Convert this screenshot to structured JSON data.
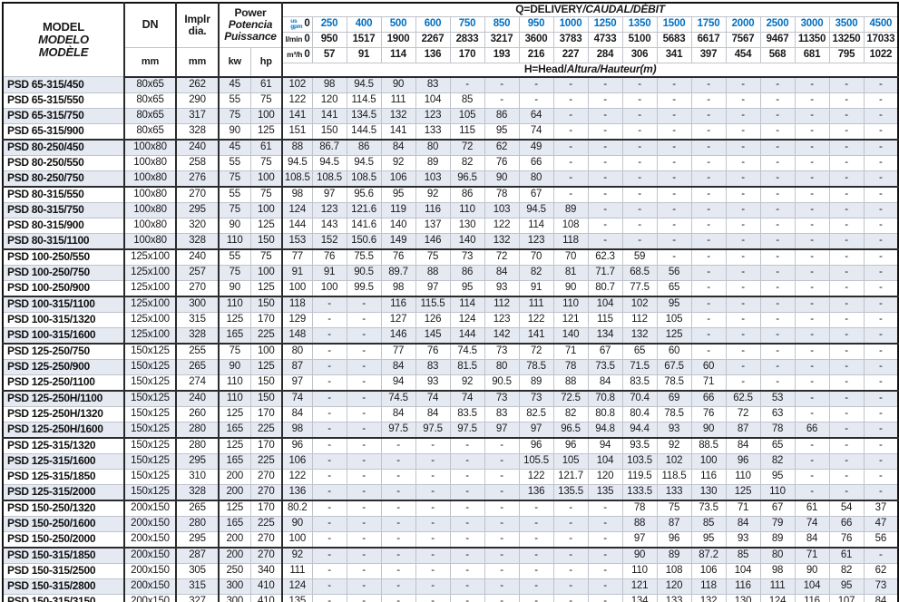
{
  "colors": {
    "accent_blue": "#0070c0",
    "row_shade": "#e4e9f2",
    "grid_line": "#bfc4cb",
    "heavy_line": "#2b2b2b"
  },
  "table": {
    "header": {
      "model_lines": [
        "MODEL",
        "MODELO",
        "MODÈLE"
      ],
      "dn_label": "DN",
      "implr_lines": [
        "Implr",
        "dia."
      ],
      "power_lines": [
        "Power",
        "Potencia",
        "Puissance"
      ],
      "mm_label": "mm",
      "kw_label": "kw",
      "hp_label": "hp",
      "q_title_main": "Q=DELIVERY",
      "q_title_italic": "/CAUDAL/DÉBIT",
      "h_title_main": "H=Head/",
      "h_title_italic": "Altura/Hauteur",
      "h_title_suffix": "(m)",
      "flow_rows": [
        {
          "name": "us-gpm",
          "unit_lines": [
            "us",
            "gpm"
          ],
          "zero": "0",
          "blue": true,
          "values": [
            "250",
            "400",
            "500",
            "600",
            "750",
            "850",
            "950",
            "1000",
            "1250",
            "1350",
            "1500",
            "1750",
            "2000",
            "2500",
            "3000",
            "3500",
            "4500"
          ]
        },
        {
          "name": "l-min",
          "unit_lines": [
            "l/min"
          ],
          "zero": "0",
          "blue": false,
          "values": [
            "950",
            "1517",
            "1900",
            "2267",
            "2833",
            "3217",
            "3600",
            "3783",
            "4733",
            "5100",
            "5683",
            "6617",
            "7567",
            "9467",
            "11350",
            "13250",
            "17033"
          ]
        },
        {
          "name": "m3-h",
          "unit_lines": [
            "m³/h"
          ],
          "zero": "0",
          "blue": false,
          "values": [
            "57",
            "91",
            "114",
            "136",
            "170",
            "193",
            "216",
            "227",
            "284",
            "306",
            "341",
            "397",
            "454",
            "568",
            "681",
            "795",
            "1022"
          ]
        }
      ]
    },
    "rows": [
      {
        "model": "PSD 65-315/450",
        "dn": "80x65",
        "dia": "262",
        "kw": "45",
        "hp": "61",
        "h": [
          "102",
          "98",
          "94.5",
          "90",
          "83",
          "-",
          "-",
          "-",
          "-",
          "-",
          "-",
          "-",
          "-",
          "-",
          "-",
          "-",
          "-",
          "-"
        ]
      },
      {
        "model": "PSD 65-315/550",
        "dn": "80x65",
        "dia": "290",
        "kw": "55",
        "hp": "75",
        "h": [
          "122",
          "120",
          "114.5",
          "111",
          "104",
          "85",
          "-",
          "-",
          "-",
          "-",
          "-",
          "-",
          "-",
          "-",
          "-",
          "-",
          "-",
          "-"
        ]
      },
      {
        "model": "PSD 65-315/750",
        "dn": "80x65",
        "dia": "317",
        "kw": "75",
        "hp": "100",
        "h": [
          "141",
          "141",
          "134.5",
          "132",
          "123",
          "105",
          "86",
          "64",
          "-",
          "-",
          "-",
          "-",
          "-",
          "-",
          "-",
          "-",
          "-",
          "-"
        ]
      },
      {
        "model": "PSD 65-315/900",
        "dn": "80x65",
        "dia": "328",
        "kw": "90",
        "hp": "125",
        "h": [
          "151",
          "150",
          "144.5",
          "141",
          "133",
          "115",
          "95",
          "74",
          "-",
          "-",
          "-",
          "-",
          "-",
          "-",
          "-",
          "-",
          "-",
          "-"
        ]
      },
      {
        "model": "PSD 80-250/450",
        "dn": "100x80",
        "dia": "240",
        "kw": "45",
        "hp": "61",
        "h": [
          "88",
          "86.7",
          "86",
          "84",
          "80",
          "72",
          "62",
          "49",
          "-",
          "-",
          "-",
          "-",
          "-",
          "-",
          "-",
          "-",
          "-",
          "-"
        ]
      },
      {
        "model": "PSD 80-250/550",
        "dn": "100x80",
        "dia": "258",
        "kw": "55",
        "hp": "75",
        "h": [
          "94.5",
          "94.5",
          "94.5",
          "92",
          "89",
          "82",
          "76",
          "66",
          "-",
          "-",
          "-",
          "-",
          "-",
          "-",
          "-",
          "-",
          "-",
          "-"
        ]
      },
      {
        "model": "PSD 80-250/750",
        "dn": "100x80",
        "dia": "276",
        "kw": "75",
        "hp": "100",
        "h": [
          "108.5",
          "108.5",
          "108.5",
          "106",
          "103",
          "96.5",
          "90",
          "80",
          "-",
          "-",
          "-",
          "-",
          "-",
          "-",
          "-",
          "-",
          "-",
          "-"
        ]
      },
      {
        "model": "PSD 80-315/550",
        "dn": "100x80",
        "dia": "270",
        "kw": "55",
        "hp": "75",
        "h": [
          "98",
          "97",
          "95.6",
          "95",
          "92",
          "86",
          "78",
          "67",
          "-",
          "-",
          "-",
          "-",
          "-",
          "-",
          "-",
          "-",
          "-",
          "-"
        ]
      },
      {
        "model": "PSD 80-315/750",
        "dn": "100x80",
        "dia": "295",
        "kw": "75",
        "hp": "100",
        "h": [
          "124",
          "123",
          "121.6",
          "119",
          "116",
          "110",
          "103",
          "94.5",
          "89",
          "-",
          "-",
          "-",
          "-",
          "-",
          "-",
          "-",
          "-",
          "-"
        ]
      },
      {
        "model": "PSD 80-315/900",
        "dn": "100x80",
        "dia": "320",
        "kw": "90",
        "hp": "125",
        "h": [
          "144",
          "143",
          "141.6",
          "140",
          "137",
          "130",
          "122",
          "114",
          "108",
          "-",
          "-",
          "-",
          "-",
          "-",
          "-",
          "-",
          "-",
          "-"
        ]
      },
      {
        "model": "PSD 80-315/1100",
        "dn": "100x80",
        "dia": "328",
        "kw": "110",
        "hp": "150",
        "h": [
          "153",
          "152",
          "150.6",
          "149",
          "146",
          "140",
          "132",
          "123",
          "118",
          "-",
          "-",
          "-",
          "-",
          "-",
          "-",
          "-",
          "-",
          "-"
        ]
      },
      {
        "model": "PSD 100-250/550",
        "dn": "125x100",
        "dia": "240",
        "kw": "55",
        "hp": "75",
        "h": [
          "77",
          "76",
          "75.5",
          "76",
          "75",
          "73",
          "72",
          "70",
          "70",
          "62.3",
          "59",
          "-",
          "-",
          "-",
          "-",
          "-",
          "-",
          "-"
        ]
      },
      {
        "model": "PSD 100-250/750",
        "dn": "125x100",
        "dia": "257",
        "kw": "75",
        "hp": "100",
        "h": [
          "91",
          "91",
          "90.5",
          "89.7",
          "88",
          "86",
          "84",
          "82",
          "81",
          "71.7",
          "68.5",
          "56",
          "-",
          "-",
          "-",
          "-",
          "-",
          "-"
        ]
      },
      {
        "model": "PSD 100-250/900",
        "dn": "125x100",
        "dia": "270",
        "kw": "90",
        "hp": "125",
        "h": [
          "100",
          "100",
          "99.5",
          "98",
          "97",
          "95",
          "93",
          "91",
          "90",
          "80.7",
          "77.5",
          "65",
          "-",
          "-",
          "-",
          "-",
          "-",
          "-"
        ]
      },
      {
        "model": "PSD 100-315/1100",
        "dn": "125x100",
        "dia": "300",
        "kw": "110",
        "hp": "150",
        "h": [
          "118",
          "-",
          "-",
          "116",
          "115.5",
          "114",
          "112",
          "111",
          "110",
          "104",
          "102",
          "95",
          "-",
          "-",
          "-",
          "-",
          "-",
          "-"
        ]
      },
      {
        "model": "PSD 100-315/1320",
        "dn": "125x100",
        "dia": "315",
        "kw": "125",
        "hp": "170",
        "h": [
          "129",
          "-",
          "-",
          "127",
          "126",
          "124",
          "123",
          "122",
          "121",
          "115",
          "112",
          "105",
          "-",
          "-",
          "-",
          "-",
          "-",
          "-"
        ]
      },
      {
        "model": "PSD 100-315/1600",
        "dn": "125x100",
        "dia": "328",
        "kw": "165",
        "hp": "225",
        "h": [
          "148",
          "-",
          "-",
          "146",
          "145",
          "144",
          "142",
          "141",
          "140",
          "134",
          "132",
          "125",
          "-",
          "-",
          "-",
          "-",
          "-",
          "-"
        ]
      },
      {
        "model": "PSD 125-250/750",
        "dn": "150x125",
        "dia": "255",
        "kw": "75",
        "hp": "100",
        "h": [
          "80",
          "-",
          "-",
          "77",
          "76",
          "74.5",
          "73",
          "72",
          "71",
          "67",
          "65",
          "60",
          "-",
          "-",
          "-",
          "-",
          "-",
          "-"
        ]
      },
      {
        "model": "PSD 125-250/900",
        "dn": "150x125",
        "dia": "265",
        "kw": "90",
        "hp": "125",
        "h": [
          "87",
          "-",
          "-",
          "84",
          "83",
          "81.5",
          "80",
          "78.5",
          "78",
          "73.5",
          "71.5",
          "67.5",
          "60",
          "-",
          "-",
          "-",
          "-",
          "-"
        ]
      },
      {
        "model": "PSD 125-250/1100",
        "dn": "150x125",
        "dia": "274",
        "kw": "110",
        "hp": "150",
        "h": [
          "97",
          "-",
          "-",
          "94",
          "93",
          "92",
          "90.5",
          "89",
          "88",
          "84",
          "83.5",
          "78.5",
          "71",
          "-",
          "-",
          "-",
          "-",
          "-"
        ]
      },
      {
        "model": "PSD 125-250H/1100",
        "dn": "150x125",
        "dia": "240",
        "kw": "110",
        "hp": "150",
        "h": [
          "74",
          "-",
          "-",
          "74.5",
          "74",
          "74",
          "73",
          "73",
          "72.5",
          "70.8",
          "70.4",
          "69",
          "66",
          "62.5",
          "53",
          "-",
          "-",
          "-"
        ]
      },
      {
        "model": "PSD 125-250H/1320",
        "dn": "150x125",
        "dia": "260",
        "kw": "125",
        "hp": "170",
        "h": [
          "84",
          "-",
          "-",
          "84",
          "84",
          "83.5",
          "83",
          "82.5",
          "82",
          "80.8",
          "80.4",
          "78.5",
          "76",
          "72",
          "63",
          "-",
          "-",
          "-"
        ]
      },
      {
        "model": "PSD 125-250H/1600",
        "dn": "150x125",
        "dia": "280",
        "kw": "165",
        "hp": "225",
        "h": [
          "98",
          "-",
          "-",
          "97.5",
          "97.5",
          "97.5",
          "97",
          "97",
          "96.5",
          "94.8",
          "94.4",
          "93",
          "90",
          "87",
          "78",
          "66",
          "-",
          "-"
        ]
      },
      {
        "model": "PSD 125-315/1320",
        "dn": "150x125",
        "dia": "280",
        "kw": "125",
        "hp": "170",
        "h": [
          "96",
          "-",
          "-",
          "-",
          "-",
          "-",
          "-",
          "96",
          "96",
          "94",
          "93.5",
          "92",
          "88.5",
          "84",
          "65",
          "-",
          "-",
          "-"
        ]
      },
      {
        "model": "PSD 125-315/1600",
        "dn": "150x125",
        "dia": "295",
        "kw": "165",
        "hp": "225",
        "h": [
          "106",
          "-",
          "-",
          "-",
          "-",
          "-",
          "-",
          "105.5",
          "105",
          "104",
          "103.5",
          "102",
          "100",
          "96",
          "82",
          "-",
          "-",
          "-"
        ]
      },
      {
        "model": "PSD 125-315/1850",
        "dn": "150x125",
        "dia": "310",
        "kw": "200",
        "hp": "270",
        "h": [
          "122",
          "-",
          "-",
          "-",
          "-",
          "-",
          "-",
          "122",
          "121.7",
          "120",
          "119.5",
          "118.5",
          "116",
          "110",
          "95",
          "-",
          "-",
          "-"
        ]
      },
      {
        "model": "PSD 125-315/2000",
        "dn": "150x125",
        "dia": "328",
        "kw": "200",
        "hp": "270",
        "h": [
          "136",
          "-",
          "-",
          "-",
          "-",
          "-",
          "-",
          "136",
          "135.5",
          "135",
          "133.5",
          "133",
          "130",
          "125",
          "110",
          "-",
          "-",
          "-"
        ]
      },
      {
        "model": "PSD 150-250/1320",
        "dn": "200x150",
        "dia": "265",
        "kw": "125",
        "hp": "170",
        "h": [
          "80.2",
          "-",
          "-",
          "-",
          "-",
          "-",
          "-",
          "-",
          "-",
          "-",
          "78",
          "75",
          "73.5",
          "71",
          "67",
          "61",
          "54",
          "37"
        ]
      },
      {
        "model": "PSD 150-250/1600",
        "dn": "200x150",
        "dia": "280",
        "kw": "165",
        "hp": "225",
        "h": [
          "90",
          "-",
          "-",
          "-",
          "-",
          "-",
          "-",
          "-",
          "-",
          "-",
          "88",
          "87",
          "85",
          "84",
          "79",
          "74",
          "66",
          "47"
        ]
      },
      {
        "model": "PSD 150-250/2000",
        "dn": "200x150",
        "dia": "295",
        "kw": "200",
        "hp": "270",
        "h": [
          "100",
          "-",
          "-",
          "-",
          "-",
          "-",
          "-",
          "-",
          "-",
          "-",
          "97",
          "96",
          "95",
          "93",
          "89",
          "84",
          "76",
          "56"
        ]
      },
      {
        "model": "PSD 150-315/1850",
        "dn": "200x150",
        "dia": "287",
        "kw": "200",
        "hp": "270",
        "h": [
          "92",
          "-",
          "-",
          "-",
          "-",
          "-",
          "-",
          "-",
          "-",
          "-",
          "90",
          "89",
          "87.2",
          "85",
          "80",
          "71",
          "61",
          "-"
        ]
      },
      {
        "model": "PSD 150-315/2500",
        "dn": "200x150",
        "dia": "305",
        "kw": "250",
        "hp": "340",
        "h": [
          "111",
          "-",
          "-",
          "-",
          "-",
          "-",
          "-",
          "-",
          "-",
          "-",
          "110",
          "108",
          "106",
          "104",
          "98",
          "90",
          "82",
          "62"
        ]
      },
      {
        "model": "PSD 150-315/2800",
        "dn": "200x150",
        "dia": "315",
        "kw": "300",
        "hp": "410",
        "h": [
          "124",
          "-",
          "-",
          "-",
          "-",
          "-",
          "-",
          "-",
          "-",
          "-",
          "121",
          "120",
          "118",
          "116",
          "111",
          "104",
          "95",
          "73"
        ]
      },
      {
        "model": "PSD 150-315/3150",
        "dn": "200x150",
        "dia": "327",
        "kw": "300",
        "hp": "410",
        "h": [
          "135",
          "-",
          "-",
          "-",
          "-",
          "-",
          "-",
          "-",
          "-",
          "-",
          "134",
          "133",
          "132",
          "130",
          "124",
          "116",
          "107",
          "84"
        ]
      }
    ]
  }
}
